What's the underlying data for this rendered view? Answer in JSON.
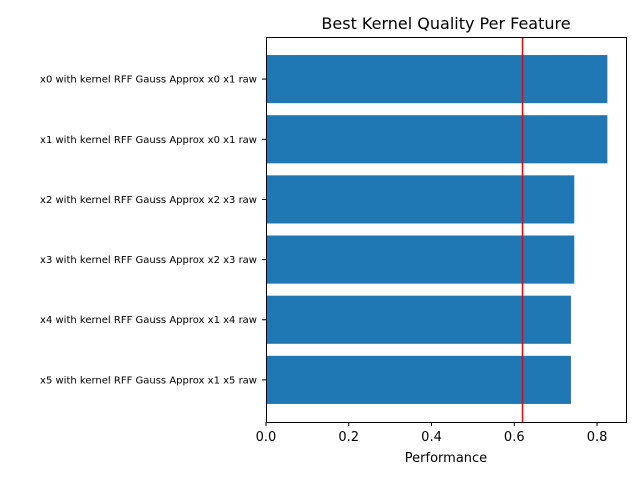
{
  "chart_data": {
    "type": "bar",
    "orientation": "horizontal",
    "title": "Best Kernel Quality Per Feature",
    "xlabel": "Performance",
    "ylabel": "",
    "categories": [
      "x0 with kernel RFF Gauss Approx x0 x1 raw",
      "x1 with kernel RFF Gauss Approx x0 x1 raw",
      "x2 with kernel RFF Gauss Approx x2 x3 raw",
      "x3 with kernel RFF Gauss Approx x2 x3 raw",
      "x4 with kernel RFF Gauss Approx x1 x4 raw",
      "x5 with kernel RFF Gauss Approx x1 x5 raw"
    ],
    "values": [
      0.825,
      0.825,
      0.745,
      0.745,
      0.737,
      0.737
    ],
    "xlim": [
      0,
      0.87
    ],
    "xticks": [
      "0.0",
      "0.2",
      "0.4",
      "0.6",
      "0.8"
    ],
    "reference_line": {
      "value": 0.62,
      "color": "#ff0000"
    },
    "bar_color": "#1f77b4",
    "grid": false
  }
}
